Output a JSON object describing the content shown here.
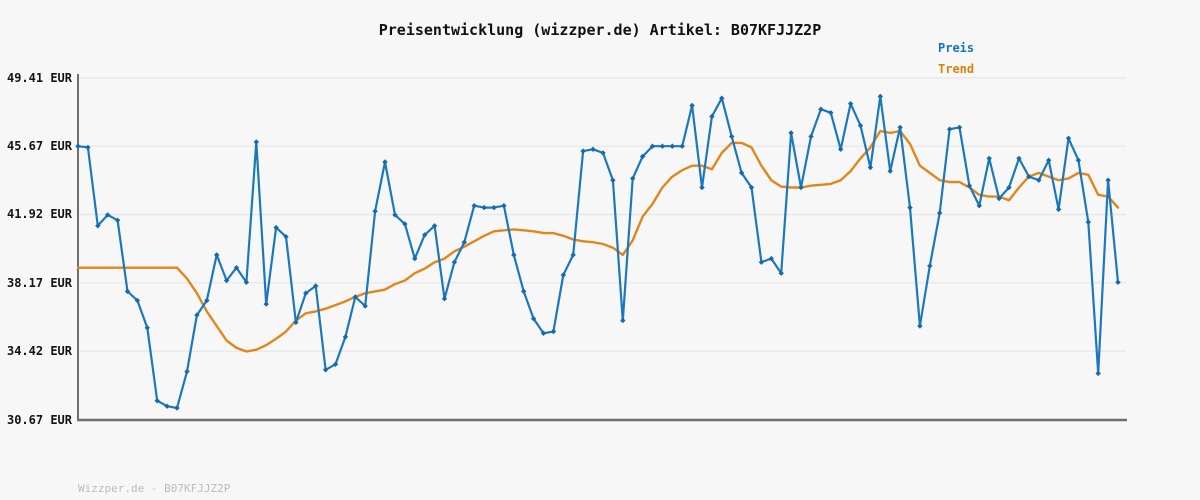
{
  "title": "Preisentwicklung (wizzper.de) Artikel: B07KFJJZ2P",
  "watermark": "Wizzper.de - B07KFJJZ2P",
  "legend": {
    "items": [
      {
        "label": "Preis",
        "color": "#1475be"
      },
      {
        "label": "Trend",
        "color": "#d8820b"
      }
    ]
  },
  "y_axis": {
    "unit": "EUR",
    "labels": [
      {
        "text": "49.41 EUR",
        "value": 49.41
      },
      {
        "text": "45.67 EUR",
        "value": 45.67
      },
      {
        "text": "41.92 EUR",
        "value": 41.92
      },
      {
        "text": "38.17 EUR",
        "value": 38.17
      },
      {
        "text": "34.42 EUR",
        "value": 34.42
      },
      {
        "text": "30.67 EUR",
        "value": 30.67
      }
    ]
  },
  "colors": {
    "background": "#f7f7f7",
    "gridline": "#e8e8e8",
    "axis_spine": "#6f6f6f",
    "title_text": "#111111",
    "ylabel_text": "#141414",
    "watermark_text": "#bcbcbc"
  },
  "chart_data": {
    "type": "line",
    "title": "Preisentwicklung (wizzper.de) Artikel: B07KFJJZ2P",
    "xlabel": "",
    "ylabel": "EUR",
    "x_axis_tick_labels_shown": false,
    "ylim": [
      30.67,
      49.41
    ],
    "yticks": [
      49.41,
      45.67,
      41.92,
      38.17,
      34.42,
      30.67
    ],
    "grid": "horizontal",
    "legend_position": "top-right",
    "series": [
      {
        "name": "Preis",
        "color": "#1b78be",
        "marker": "diamond",
        "marker_color": "#1569ad",
        "values": [
          45.67,
          45.6,
          41.3,
          41.9,
          41.6,
          37.7,
          37.2,
          35.7,
          31.7,
          31.4,
          31.3,
          33.3,
          36.4,
          37.2,
          39.7,
          38.3,
          39.0,
          38.2,
          45.9,
          37.0,
          41.2,
          40.7,
          36.0,
          37.6,
          38.0,
          33.4,
          33.7,
          35.2,
          37.4,
          36.9,
          42.1,
          44.8,
          41.9,
          41.4,
          39.5,
          40.8,
          41.3,
          37.3,
          39.3,
          40.4,
          42.4,
          42.3,
          42.3,
          42.4,
          39.7,
          37.7,
          36.2,
          35.4,
          35.5,
          38.6,
          39.7,
          45.4,
          45.5,
          45.3,
          43.8,
          36.1,
          43.9,
          45.1,
          45.67,
          45.67,
          45.67,
          45.67,
          47.9,
          43.4,
          47.3,
          48.3,
          46.2,
          44.2,
          43.4,
          39.3,
          39.5,
          38.7,
          46.4,
          43.4,
          46.2,
          47.7,
          47.5,
          45.5,
          48.0,
          46.8,
          44.5,
          48.4,
          44.3,
          46.7,
          42.3,
          35.8,
          39.1,
          42.0,
          46.6,
          46.7,
          43.5,
          42.4,
          45.0,
          42.8,
          43.4,
          45.0,
          44.0,
          43.8,
          44.9,
          42.2,
          46.1,
          44.9,
          41.5,
          33.2,
          43.8,
          38.2
        ]
      },
      {
        "name": "Trend",
        "color": "#e0861a",
        "marker": "none",
        "values": [
          39.0,
          39.0,
          39.0,
          39.0,
          39.0,
          39.0,
          39.0,
          39.0,
          39.0,
          39.0,
          39.0,
          38.4,
          37.6,
          36.6,
          35.8,
          35.0,
          34.6,
          34.4,
          34.5,
          34.75,
          35.1,
          35.5,
          36.1,
          36.5,
          36.6,
          36.75,
          36.95,
          37.15,
          37.4,
          37.6,
          37.7,
          37.8,
          38.1,
          38.3,
          38.7,
          38.95,
          39.3,
          39.5,
          39.9,
          40.15,
          40.45,
          40.75,
          41.0,
          41.05,
          41.1,
          41.05,
          41.0,
          40.9,
          40.9,
          40.75,
          40.55,
          40.45,
          40.4,
          40.3,
          40.1,
          39.7,
          40.5,
          41.8,
          42.5,
          43.4,
          44.0,
          44.35,
          44.6,
          44.6,
          44.4,
          45.3,
          45.85,
          45.85,
          45.6,
          44.6,
          43.8,
          43.45,
          43.4,
          43.4,
          43.5,
          43.55,
          43.6,
          43.8,
          44.3,
          45.0,
          45.6,
          46.5,
          46.4,
          46.5,
          45.8,
          44.6,
          44.2,
          43.8,
          43.7,
          43.7,
          43.4,
          43.0,
          42.9,
          42.9,
          42.7,
          43.4,
          44.0,
          44.2,
          44.0,
          43.8,
          43.9,
          44.2,
          44.1,
          43.0,
          42.9,
          42.3
        ]
      }
    ]
  }
}
